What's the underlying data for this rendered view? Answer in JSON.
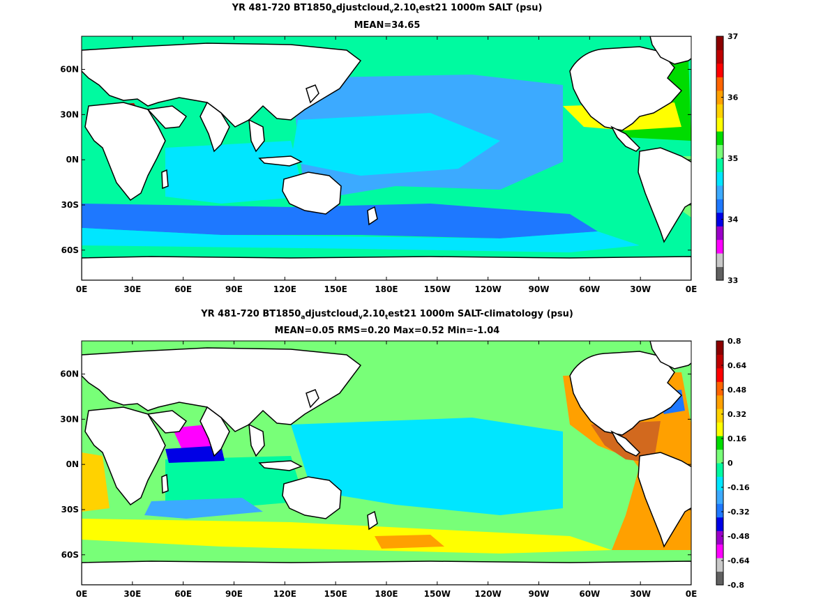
{
  "panel1": {
    "title_pre": "YR 481-720 BT1850",
    "title_sub1": "a",
    "title_mid": "djustcloud",
    "title_sub2": "v",
    "title_mid2": "2.10",
    "title_sub3": "t",
    "title_post": "est21 1000m SALT (psu)",
    "subtitle": "MEAN=34.65",
    "colorbar": {
      "colors": [
        "#606060",
        "#c8c8c8",
        "#ff00ff",
        "#9b00c8",
        "#0000e6",
        "#1e78ff",
        "#3caaff",
        "#00e6ff",
        "#00faa0",
        "#78ff78",
        "#00dc00",
        "#ffff00",
        "#ffd200",
        "#ffa000",
        "#ff6400",
        "#ff0000",
        "#be0000",
        "#8b0000"
      ],
      "ticks": [
        "37",
        "36",
        "35",
        "34",
        "33"
      ]
    }
  },
  "panel2": {
    "title_pre": "YR 481-720 BT1850",
    "title_sub1": "a",
    "title_mid": "djustcloud",
    "title_sub2": "v",
    "title_mid2": "2.10",
    "title_sub3": "t",
    "title_post": "est21 1000m SALT-climatology (psu)",
    "subtitle": "MEAN=0.05   RMS=0.20   Max=0.52   Min=-1.04",
    "colorbar": {
      "colors": [
        "#606060",
        "#c8c8c8",
        "#ff00ff",
        "#9b00c8",
        "#0000e6",
        "#1e78ff",
        "#3caaff",
        "#00e6ff",
        "#00faa0",
        "#78ff78",
        "#00dc00",
        "#ffff00",
        "#ffd200",
        "#ffa000",
        "#ff6400",
        "#ff0000",
        "#be0000",
        "#8b0000"
      ],
      "ticks": [
        "0.8",
        "0.64",
        "0.48",
        "0.32",
        "0.16",
        "0",
        "-0.16",
        "-0.32",
        "-0.48",
        "-0.64",
        "-0.8"
      ]
    }
  },
  "axes": {
    "x_ticks": [
      "0E",
      "30E",
      "60E",
      "90E",
      "120E",
      "150E",
      "180E",
      "150W",
      "120W",
      "90W",
      "60W",
      "30W",
      "0E"
    ],
    "y_ticks": [
      "60N",
      "30N",
      "0N",
      "30S",
      "60S"
    ]
  },
  "colors": {
    "land": "#ffffff",
    "coast": "#000000"
  }
}
